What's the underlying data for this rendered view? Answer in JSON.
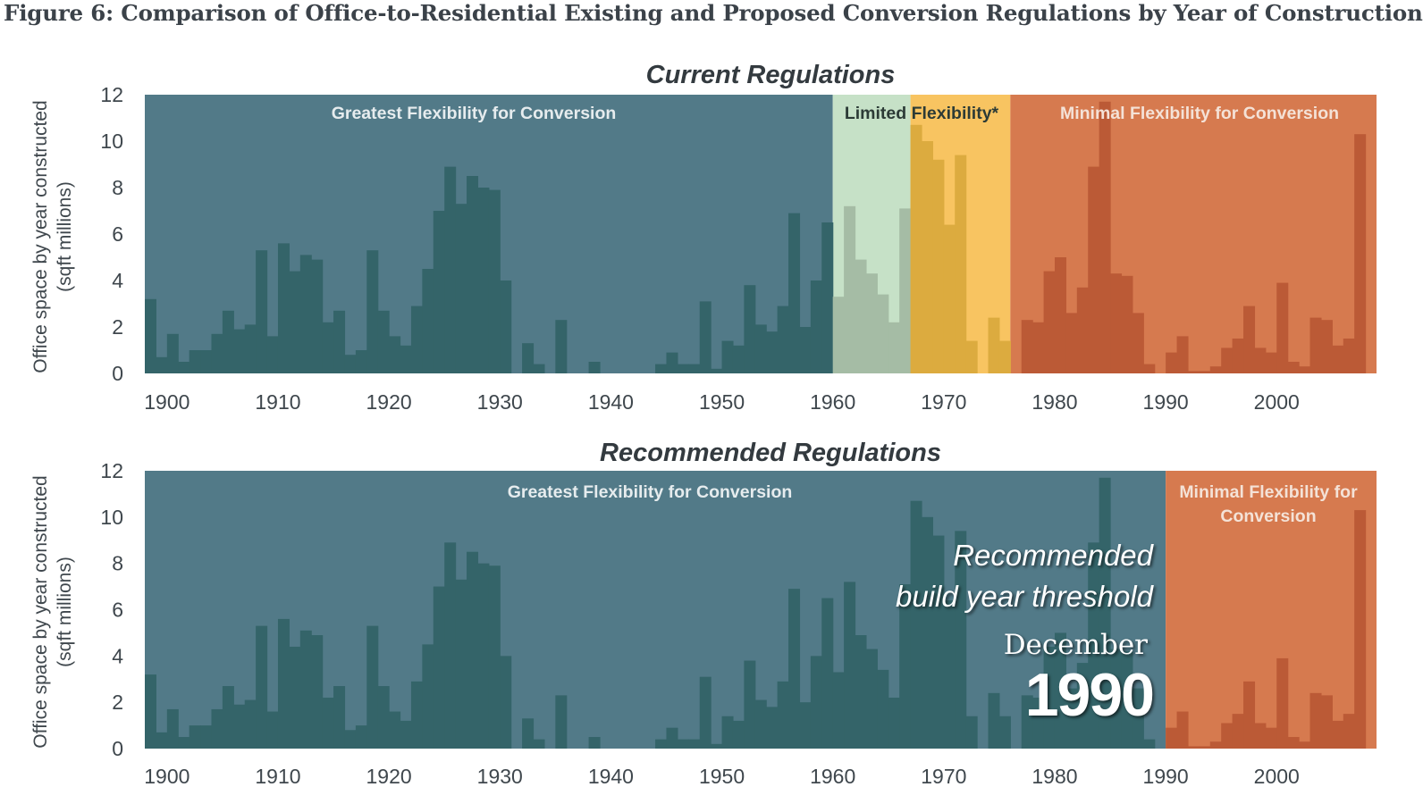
{
  "title": "Figure 6: Comparison of Office-to-Residential Existing and Proposed Conversion Regulations by Year of Construction",
  "colors": {
    "greatest": "#527a88",
    "greatest_bar": "#346469",
    "limited": "#c6e1c7",
    "limited_bar": "#a5bca5",
    "minimal_yellow": "#f8c461",
    "minimal_yellow_bar": "#dcab3f",
    "minimal_orange": "#d67a4f",
    "minimal_orange_bar": "#bb5a36",
    "tick_text": "#3f474d",
    "label_light": "#e6ecee",
    "label_dark": "#2c3b36"
  },
  "chart_data": [
    {
      "type": "bar",
      "title": "Current Regulations",
      "ylabel_line1": "Office space by year constructed",
      "ylabel_line2": "(sqft millions)",
      "xlabel": "",
      "xlim": [
        1898,
        2009
      ],
      "ylim": [
        0,
        12
      ],
      "yticks": [
        "0",
        "2",
        "4",
        "6",
        "8",
        "10",
        "12"
      ],
      "xticks": [
        "1900",
        "1910",
        "1920",
        "1930",
        "1940",
        "1950",
        "1960",
        "1970",
        "1980",
        "1990",
        "2000"
      ],
      "regions": [
        {
          "label": "Greatest Flexibility for Conversion",
          "start": 1898,
          "end": 1960,
          "color_key": "greatest"
        },
        {
          "label": "Limited Flexibility*",
          "start": 1960,
          "end": 1967,
          "color_key": "limited"
        },
        {
          "label": "",
          "start": 1967,
          "end": 1976,
          "color_key": "minimal_yellow"
        },
        {
          "label": "Minimal Flexibility for Conversion",
          "start": 1976,
          "end": 2009,
          "color_key": "minimal_orange"
        }
      ],
      "x": [
        1898,
        1899,
        1900,
        1901,
        1902,
        1903,
        1904,
        1905,
        1906,
        1907,
        1908,
        1909,
        1910,
        1911,
        1912,
        1913,
        1914,
        1915,
        1916,
        1917,
        1918,
        1919,
        1920,
        1921,
        1922,
        1923,
        1924,
        1925,
        1926,
        1927,
        1928,
        1929,
        1930,
        1931,
        1932,
        1933,
        1934,
        1935,
        1936,
        1937,
        1938,
        1939,
        1940,
        1941,
        1942,
        1943,
        1944,
        1945,
        1946,
        1947,
        1948,
        1949,
        1950,
        1951,
        1952,
        1953,
        1954,
        1955,
        1956,
        1957,
        1958,
        1959,
        1960,
        1961,
        1962,
        1963,
        1964,
        1965,
        1966,
        1967,
        1968,
        1969,
        1970,
        1971,
        1972,
        1973,
        1974,
        1975,
        1976,
        1977,
        1978,
        1979,
        1980,
        1981,
        1982,
        1983,
        1984,
        1985,
        1986,
        1987,
        1988,
        1989,
        1990,
        1991,
        1992,
        1993,
        1994,
        1995,
        1996,
        1997,
        1998,
        1999,
        2000,
        2001,
        2002,
        2003,
        2004,
        2005,
        2006,
        2007,
        2008
      ],
      "values": [
        3.2,
        0.7,
        1.7,
        0.5,
        1.0,
        1.0,
        1.7,
        2.7,
        1.9,
        2.1,
        5.3,
        1.6,
        5.6,
        4.4,
        5.1,
        4.9,
        2.2,
        2.7,
        0.8,
        1.0,
        5.3,
        2.7,
        1.6,
        1.2,
        2.9,
        4.5,
        7.0,
        8.9,
        7.3,
        8.5,
        8.0,
        7.9,
        4.0,
        0.0,
        1.3,
        0.4,
        0.0,
        2.3,
        0.0,
        0.0,
        0.5,
        0.0,
        0.0,
        0.0,
        0.0,
        0.0,
        0.4,
        0.9,
        0.4,
        0.4,
        3.1,
        0.2,
        1.4,
        1.2,
        3.8,
        2.1,
        1.8,
        2.9,
        6.9,
        2.0,
        4.0,
        6.5,
        3.3,
        7.2,
        4.9,
        4.3,
        3.4,
        2.2,
        7.1,
        10.7,
        10.0,
        9.2,
        6.4,
        9.4,
        1.4,
        0.0,
        2.4,
        1.4,
        0.0,
        2.3,
        2.2,
        4.4,
        5.0,
        2.6,
        3.7,
        8.9,
        11.7,
        4.3,
        4.2,
        2.6,
        0.4,
        0.0,
        0.9,
        1.6,
        0.1,
        0.1,
        0.3,
        1.1,
        1.5,
        2.9,
        1.1,
        0.9,
        3.9,
        0.5,
        0.3,
        2.4,
        2.3,
        1.2,
        1.5,
        10.3,
        0.0
      ]
    },
    {
      "type": "bar",
      "title": "Recommended Regulations",
      "ylabel_line1": "Office space by year constructed",
      "ylabel_line2": "(sqft millions)",
      "xlabel": "",
      "xlim": [
        1898,
        2009
      ],
      "ylim": [
        0,
        12
      ],
      "yticks": [
        "0",
        "2",
        "4",
        "6",
        "8",
        "10",
        "12"
      ],
      "xticks": [
        "1900",
        "1910",
        "1920",
        "1930",
        "1940",
        "1950",
        "1960",
        "1970",
        "1980",
        "1990",
        "2000"
      ],
      "regions": [
        {
          "label": "Greatest Flexibility for Conversion",
          "start": 1898,
          "end": 1990,
          "color_key": "greatest"
        },
        {
          "label_line1": "Minimal Flexibility for",
          "label_line2": "Conversion",
          "start": 1990,
          "end": 2009,
          "color_key": "minimal_orange"
        }
      ],
      "annotation": {
        "line1": "Recommended",
        "line2": "build year threshold",
        "month": "December",
        "year": "1990"
      },
      "x": [
        1898,
        1899,
        1900,
        1901,
        1902,
        1903,
        1904,
        1905,
        1906,
        1907,
        1908,
        1909,
        1910,
        1911,
        1912,
        1913,
        1914,
        1915,
        1916,
        1917,
        1918,
        1919,
        1920,
        1921,
        1922,
        1923,
        1924,
        1925,
        1926,
        1927,
        1928,
        1929,
        1930,
        1931,
        1932,
        1933,
        1934,
        1935,
        1936,
        1937,
        1938,
        1939,
        1940,
        1941,
        1942,
        1943,
        1944,
        1945,
        1946,
        1947,
        1948,
        1949,
        1950,
        1951,
        1952,
        1953,
        1954,
        1955,
        1956,
        1957,
        1958,
        1959,
        1960,
        1961,
        1962,
        1963,
        1964,
        1965,
        1966,
        1967,
        1968,
        1969,
        1970,
        1971,
        1972,
        1973,
        1974,
        1975,
        1976,
        1977,
        1978,
        1979,
        1980,
        1981,
        1982,
        1983,
        1984,
        1985,
        1986,
        1987,
        1988,
        1989,
        1990,
        1991,
        1992,
        1993,
        1994,
        1995,
        1996,
        1997,
        1998,
        1999,
        2000,
        2001,
        2002,
        2003,
        2004,
        2005,
        2006,
        2007,
        2008
      ],
      "values": [
        3.2,
        0.7,
        1.7,
        0.5,
        1.0,
        1.0,
        1.7,
        2.7,
        1.9,
        2.1,
        5.3,
        1.6,
        5.6,
        4.4,
        5.1,
        4.9,
        2.2,
        2.7,
        0.8,
        1.0,
        5.3,
        2.7,
        1.6,
        1.2,
        2.9,
        4.5,
        7.0,
        8.9,
        7.3,
        8.5,
        8.0,
        7.9,
        4.0,
        0.0,
        1.3,
        0.4,
        0.0,
        2.3,
        0.0,
        0.0,
        0.5,
        0.0,
        0.0,
        0.0,
        0.0,
        0.0,
        0.4,
        0.9,
        0.4,
        0.4,
        3.1,
        0.2,
        1.4,
        1.2,
        3.8,
        2.1,
        1.8,
        2.9,
        6.9,
        2.0,
        4.0,
        6.5,
        3.3,
        7.2,
        4.9,
        4.3,
        3.4,
        2.2,
        7.1,
        10.7,
        10.0,
        9.2,
        6.4,
        9.4,
        1.4,
        0.0,
        2.4,
        1.4,
        0.0,
        2.3,
        2.2,
        4.4,
        5.0,
        2.6,
        3.7,
        8.9,
        11.7,
        4.3,
        4.2,
        2.6,
        0.4,
        0.0,
        0.9,
        1.6,
        0.1,
        0.1,
        0.3,
        1.1,
        1.5,
        2.9,
        1.1,
        0.9,
        3.9,
        0.5,
        0.3,
        2.4,
        2.3,
        1.2,
        1.5,
        10.3,
        0.0
      ]
    }
  ]
}
